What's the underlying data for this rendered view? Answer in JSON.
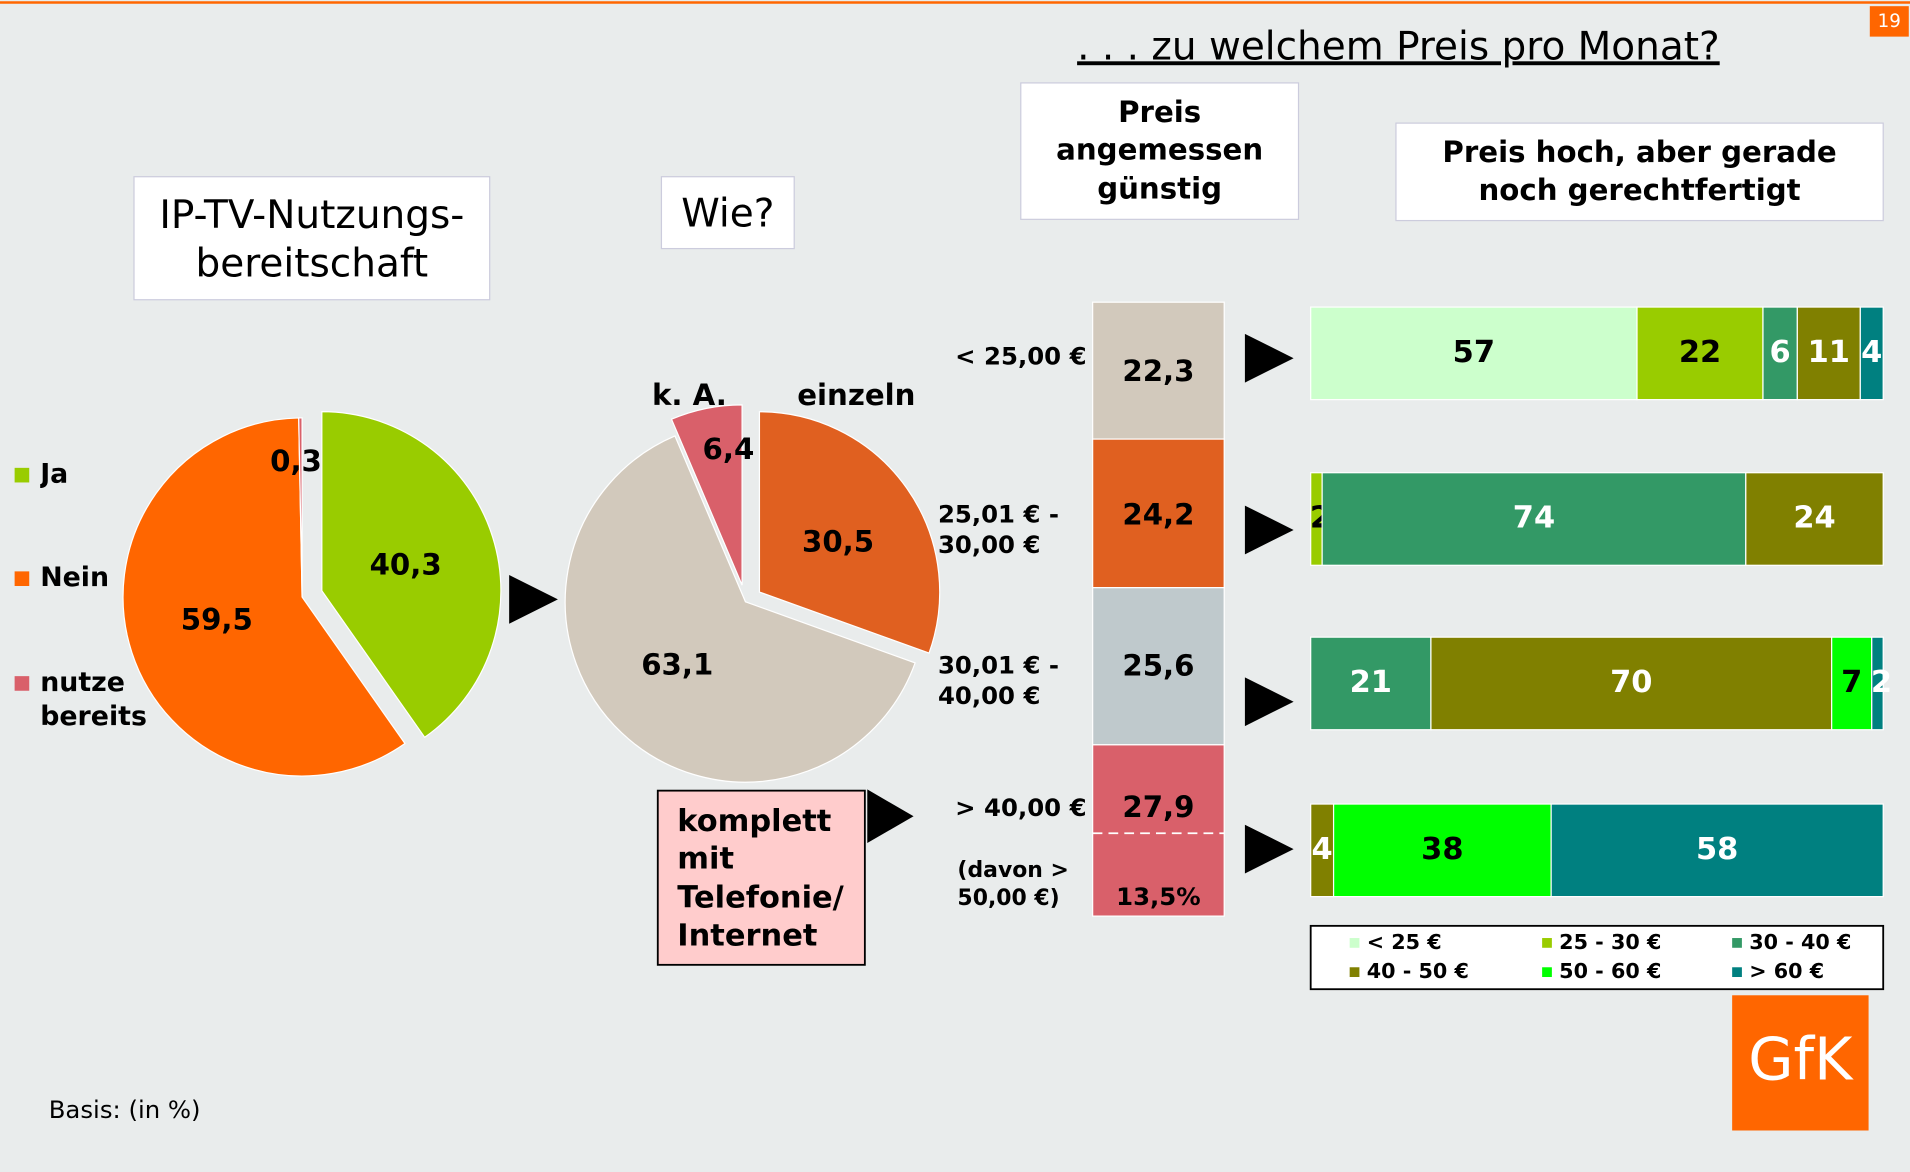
{
  "page_number": "19",
  "heading": ". . . zu welchem Preis pro Monat?",
  "footnote": "Basis: (in %)",
  "logo": "GfK",
  "chart_data": [
    {
      "type": "pie",
      "title": "IP-TV-Nutzungs- bereitschaft",
      "categories": [
        "Ja",
        "Nein",
        "nutze bereits"
      ],
      "values": [
        40.3,
        59.5,
        0.3
      ],
      "value_labels": [
        "40,3",
        "59,5",
        "0,3"
      ],
      "colors": [
        "#99cc00",
        "#ff6600",
        "#d9606a"
      ],
      "legend": "left"
    },
    {
      "type": "pie",
      "title": "Wie?",
      "categories": [
        "einzeln",
        "komplett mit Telefonie/ Internet",
        "k. A."
      ],
      "values": [
        30.5,
        63.1,
        6.4
      ],
      "value_labels": [
        "30,5",
        "63,1",
        "6,4"
      ],
      "colors": [
        "#e06020",
        "#d2c9bc",
        "#d9606a"
      ]
    },
    {
      "type": "stacked_column",
      "title": "Preis angemessen günstig",
      "categories": [
        "< 25,00 €",
        "25,01 € - 30,00 €",
        "30,01 € - 40,00 €",
        "> 40,00 €"
      ],
      "values": [
        22.3,
        24.2,
        25.6,
        27.9
      ],
      "value_labels": [
        "22,3",
        "24,2",
        "25,6",
        "27,9"
      ],
      "colors": [
        "#d2c9bc",
        "#e06020",
        "#bfc9cc",
        "#d9606a"
      ],
      "ylim": [
        0,
        100
      ],
      "annotation": {
        "label": "(davon > 50,00 €)",
        "value": 13.5,
        "value_label": "13,5%"
      }
    },
    {
      "type": "stacked_bar",
      "title": "Preis hoch, aber gerade noch gerechtfertigt",
      "xlim": [
        0,
        100
      ],
      "legend": "bottom",
      "series": [
        {
          "name": "< 25 €",
          "color": "#ccffcc",
          "values": [
            57,
            null,
            null,
            null
          ]
        },
        {
          "name": "25 - 30 €",
          "color": "#99cc00",
          "values": [
            22,
            2,
            null,
            null
          ]
        },
        {
          "name": "30 - 40 €",
          "color": "#339966",
          "values": [
            6,
            74,
            21,
            null
          ]
        },
        {
          "name": "40 - 50 €",
          "color": "#808000",
          "values": [
            11,
            24,
            70,
            4
          ]
        },
        {
          "name": "50 - 60 €",
          "color": "#00ff00",
          "values": [
            null,
            null,
            7,
            38
          ]
        },
        {
          "name": "> 60 €",
          "color": "#008080",
          "values": [
            4,
            null,
            2,
            58
          ]
        }
      ]
    }
  ]
}
